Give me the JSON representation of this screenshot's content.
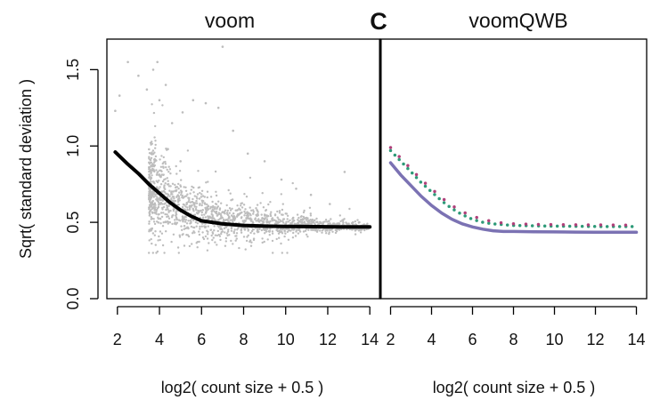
{
  "chart_data": [
    {
      "type": "scatter",
      "title": "voom",
      "xlabel": "log2( count size + 0.5 )",
      "ylabel": "Sqrt( standard deviation )",
      "xlim": [
        1.5,
        14.5
      ],
      "ylim": [
        0.0,
        1.7
      ],
      "xticks": [
        "2",
        "4",
        "6",
        "8",
        "10",
        "12",
        "14"
      ],
      "yticks": [
        "0.0",
        "0.5",
        "1.0",
        "1.5"
      ],
      "grid": false,
      "colors": {
        "points": "#bdbdbd",
        "trend": "#000000"
      },
      "series": [
        {
          "kind": "points",
          "density_profile": {
            "x": [
              3.5,
              4,
              5,
              6,
              7,
              8,
              9,
              10,
              11,
              12,
              13,
              14
            ],
            "center": [
              0.74,
              0.69,
              0.6,
              0.55,
              0.52,
              0.5,
              0.49,
              0.48,
              0.48,
              0.47,
              0.47,
              0.47
            ],
            "spread": [
              0.14,
              0.13,
              0.1,
              0.08,
              0.07,
              0.06,
              0.05,
              0.04,
              0.03,
              0.02,
              0.015,
              0.01
            ]
          },
          "outliers": [
            {
              "x": 1.9,
              "y": 1.23
            },
            {
              "x": 2.1,
              "y": 1.33
            },
            {
              "x": 2.5,
              "y": 1.55
            },
            {
              "x": 3.0,
              "y": 1.46
            },
            {
              "x": 3.4,
              "y": 1.37
            },
            {
              "x": 3.7,
              "y": 1.5
            },
            {
              "x": 3.9,
              "y": 1.55
            },
            {
              "x": 4.0,
              "y": 1.3
            },
            {
              "x": 4.3,
              "y": 1.4
            },
            {
              "x": 4.6,
              "y": 1.15
            },
            {
              "x": 5.1,
              "y": 1.22
            },
            {
              "x": 5.6,
              "y": 1.3
            },
            {
              "x": 6.2,
              "y": 1.28
            },
            {
              "x": 6.8,
              "y": 1.25
            },
            {
              "x": 7.0,
              "y": 1.65
            },
            {
              "x": 7.5,
              "y": 1.1
            },
            {
              "x": 8.2,
              "y": 0.95
            },
            {
              "x": 9.0,
              "y": 0.9
            },
            {
              "x": 9.8,
              "y": 0.78
            },
            {
              "x": 10.5,
              "y": 0.72
            },
            {
              "x": 11.2,
              "y": 0.68
            },
            {
              "x": 12.1,
              "y": 0.62
            },
            {
              "x": 12.8,
              "y": 0.83
            },
            {
              "x": 13.5,
              "y": 0.5
            },
            {
              "x": 3.6,
              "y": 0.95
            },
            {
              "x": 4.4,
              "y": 0.98
            },
            {
              "x": 5.0,
              "y": 0.9
            }
          ]
        },
        {
          "kind": "trend",
          "x": [
            1.9,
            2.5,
            3,
            3.5,
            4,
            4.5,
            5,
            5.5,
            6,
            6.5,
            7,
            7.5,
            8,
            9,
            10,
            11,
            12,
            13,
            14
          ],
          "y": [
            0.96,
            0.88,
            0.82,
            0.75,
            0.69,
            0.63,
            0.58,
            0.54,
            0.51,
            0.5,
            0.49,
            0.485,
            0.48,
            0.475,
            0.473,
            0.472,
            0.471,
            0.47,
            0.47
          ]
        }
      ]
    },
    {
      "type": "line",
      "title": "voomQWB",
      "panel_label": "C",
      "xlabel": "log2( count size + 0.5 )",
      "xlim": [
        1.5,
        14.5
      ],
      "ylim": [
        0.0,
        1.7
      ],
      "xticks": [
        "2",
        "4",
        "6",
        "8",
        "10",
        "12",
        "14"
      ],
      "grid": false,
      "colors": {
        "solid": "#7b72b3",
        "dotted_green": "#2e9a78",
        "dotted_magenta": "#b0407a"
      },
      "series": [
        {
          "style": "solid",
          "x": [
            2,
            2.5,
            3,
            3.5,
            4,
            4.5,
            5,
            5.5,
            6,
            6.5,
            7,
            7.5,
            8,
            9,
            10,
            11,
            12,
            13,
            14
          ],
          "y": [
            0.89,
            0.81,
            0.74,
            0.67,
            0.61,
            0.56,
            0.52,
            0.49,
            0.47,
            0.455,
            0.445,
            0.44,
            0.44,
            0.438,
            0.437,
            0.436,
            0.435,
            0.435,
            0.435
          ]
        },
        {
          "style": "dotted_green",
          "x": [
            2,
            2.5,
            3,
            3.5,
            4,
            4.5,
            5,
            5.5,
            6,
            6.5,
            7,
            7.5,
            8,
            9,
            10,
            11,
            12,
            13,
            14
          ],
          "y": [
            0.97,
            0.9,
            0.83,
            0.76,
            0.7,
            0.64,
            0.59,
            0.55,
            0.52,
            0.5,
            0.49,
            0.485,
            0.48,
            0.477,
            0.475,
            0.474,
            0.473,
            0.472,
            0.472
          ]
        },
        {
          "style": "dotted_magenta",
          "x": [
            2,
            2.5,
            3,
            3.5,
            4,
            4.5,
            5,
            5.5,
            6,
            6.5,
            7,
            7.5,
            8,
            9,
            10,
            11,
            12,
            13,
            14
          ],
          "y": [
            0.99,
            0.92,
            0.85,
            0.78,
            0.72,
            0.66,
            0.61,
            0.57,
            0.54,
            0.52,
            0.505,
            0.495,
            0.49,
            0.487,
            0.485,
            0.484,
            0.483,
            0.482,
            0.482
          ]
        }
      ]
    }
  ]
}
